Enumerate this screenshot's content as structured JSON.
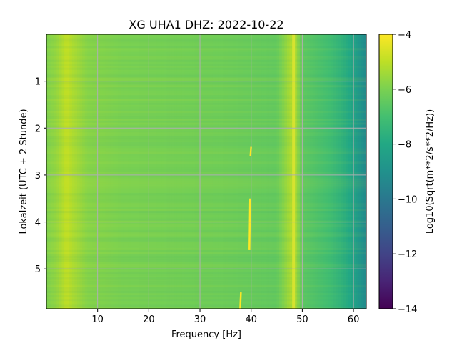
{
  "chart_data": {
    "type": "heatmap",
    "title": "XG UHA1  DHZ: 2022-10-22",
    "xlabel": "Frequency [Hz]",
    "ylabel": "Lokalzeit (UTC + 2 Stunde)",
    "xlim": [
      0,
      62.5
    ],
    "ylim": [
      5.85,
      0
    ],
    "x_ticks": [
      10,
      20,
      30,
      40,
      50,
      60
    ],
    "x_tick_labels": [
      "10",
      "20",
      "30",
      "40",
      "50",
      "60"
    ],
    "y_ticks": [
      1,
      2,
      3,
      4,
      5
    ],
    "y_tick_labels": [
      "1",
      "2",
      "3",
      "4",
      "5"
    ],
    "y_inverted": true,
    "grid": true,
    "colormap": "viridis",
    "colorbar": {
      "label": "Log10(Sqrt(m**2/s**2/Hz))",
      "range": [
        -14,
        -4
      ],
      "ticks": [
        -4,
        -6,
        -8,
        -10,
        -12,
        -14
      ],
      "tick_labels": [
        "−4",
        "−6",
        "−8",
        "−10",
        "−12",
        "−14"
      ]
    },
    "spectral_profile": {
      "frequency_hz": [
        0,
        2,
        4,
        5,
        8,
        15,
        25,
        35,
        45,
        48.3,
        50,
        52,
        55,
        58,
        60,
        62.5
      ],
      "log10_amplitude": [
        -5.9,
        -5.6,
        -4.9,
        -5.2,
        -5.8,
        -6.0,
        -6.1,
        -6.2,
        -6.4,
        -5.0,
        -6.5,
        -6.7,
        -7.0,
        -7.6,
        -8.2,
        -9.3
      ]
    },
    "narrowband_lines_hz": [
      48.3
    ],
    "transients": [
      {
        "frequency_hz": 39.8,
        "time_start_h": 3.5,
        "time_end_h": 4.6
      },
      {
        "frequency_hz": 40.0,
        "time_start_h": 2.4,
        "time_end_h": 2.6
      },
      {
        "frequency_hz": 38.0,
        "time_start_h": 5.5,
        "time_end_h": 5.85
      }
    ]
  }
}
